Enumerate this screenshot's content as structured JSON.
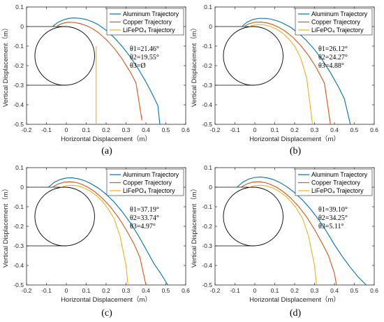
{
  "palette": {
    "aluminum": "#0072BD",
    "copper": "#D95319",
    "lifepo4": "#EDB120",
    "axes": "#262626",
    "shape": "#000000"
  },
  "chart_data": [
    {
      "type": "line",
      "caption": "(a)",
      "xlabel": "Horizontal Displacement（m）",
      "ylabel": "Vertical Displacement（m）",
      "xlim": [
        -0.2,
        0.6
      ],
      "ylim": [
        -0.5,
        0.1
      ],
      "xticks": [
        "-0.2",
        "-0.1",
        "0",
        "0.1",
        "0.2",
        "0.3",
        "0.4",
        "0.5",
        "0.6"
      ],
      "yticks": [
        "0.1",
        "0",
        "-0.1",
        "-0.2",
        "-0.3",
        "-0.4",
        "-0.5"
      ],
      "legend_position": "top-right",
      "grid": false,
      "annotations": [
        "θ1=21.46°",
        "θ2=19.55°",
        "θ3=Ø"
      ],
      "circle": {
        "center": [
          -0.008,
          -0.15
        ],
        "radius": 0.15
      },
      "guide_line": {
        "x": 0,
        "y": -0.3,
        "x_start": -0.2
      },
      "series": [
        {
          "name": "Aluminum Trajectory",
          "x": [
            -0.07,
            -0.04,
            -0.01,
            0.02,
            0.04,
            0.07,
            0.1,
            0.13,
            0.16,
            0.2,
            0.24,
            0.28,
            0.32,
            0.36,
            0.4,
            0.43,
            0.46,
            0.47
          ],
          "y": [
            0.0,
            0.023,
            0.036,
            0.043,
            0.044,
            0.042,
            0.036,
            0.025,
            0.01,
            -0.019,
            -0.056,
            -0.101,
            -0.153,
            -0.214,
            -0.283,
            -0.341,
            -0.404,
            -0.5
          ]
        },
        {
          "name": "Copper Trajectory",
          "x": [
            -0.05,
            -0.03,
            -0.01,
            0.01,
            0.04,
            0.07,
            0.1,
            0.13,
            0.16,
            0.2,
            0.24,
            0.28,
            0.32,
            0.35,
            0.38
          ],
          "y": [
            0.0,
            0.012,
            0.019,
            0.022,
            0.021,
            0.015,
            0.005,
            -0.01,
            -0.03,
            -0.066,
            -0.11,
            -0.165,
            -0.23,
            -0.288,
            -0.48
          ]
        },
        {
          "name": "LiFePO₄ Trajectory",
          "x": [
            0.15,
            0.15
          ],
          "y": [
            -0.1,
            -0.5
          ]
        }
      ]
    },
    {
      "type": "line",
      "caption": "(b)",
      "xlabel": "Horizontal Displacement（m）",
      "ylabel": "Vertical Displacement（m）",
      "xlim": [
        -0.2,
        0.6
      ],
      "ylim": [
        -0.5,
        0.1
      ],
      "xticks": [
        "-0.2",
        "-0.1",
        "0",
        "0.1",
        "0.2",
        "0.3",
        "0.4",
        "0.5",
        "0.6"
      ],
      "yticks": [
        "0.1",
        "0",
        "-0.1",
        "-0.2",
        "-0.3",
        "-0.4",
        "-0.5"
      ],
      "legend_position": "top-right",
      "grid": false,
      "annotations": [
        "θ1=26.12°",
        "θ2=24.27°",
        "θ3=4.88°"
      ],
      "circle": {
        "center": [
          -0.008,
          -0.15
        ],
        "radius": 0.15
      },
      "guide_line": {
        "x": 0,
        "y": -0.3,
        "x_start": -0.2
      },
      "series": [
        {
          "name": "Aluminum Trajectory",
          "x": [
            -0.065,
            -0.04,
            -0.01,
            0.02,
            0.05,
            0.08,
            0.11,
            0.14,
            0.18,
            0.22,
            0.26,
            0.3,
            0.34,
            0.38,
            0.42,
            0.45,
            0.48
          ],
          "y": [
            0.0,
            0.022,
            0.036,
            0.042,
            0.042,
            0.038,
            0.03,
            0.018,
            -0.004,
            -0.034,
            -0.072,
            -0.118,
            -0.172,
            -0.236,
            -0.308,
            -0.37,
            -0.5
          ]
        },
        {
          "name": "Copper Trajectory",
          "x": [
            -0.055,
            -0.03,
            0.0,
            0.03,
            0.06,
            0.09,
            0.12,
            0.15,
            0.19,
            0.23,
            0.27,
            0.31,
            0.35,
            0.38
          ],
          "y": [
            0.0,
            0.014,
            0.022,
            0.023,
            0.019,
            0.01,
            -0.004,
            -0.022,
            -0.054,
            -0.096,
            -0.148,
            -0.212,
            -0.29,
            -0.5
          ]
        },
        {
          "name": "LiFePO₄ Trajectory",
          "x": [
            -0.03,
            -0.01,
            0.02,
            0.05,
            0.08,
            0.11,
            0.14,
            0.17,
            0.2,
            0.23,
            0.26,
            0.29
          ],
          "y": [
            0.0,
            0.006,
            0.01,
            0.008,
            0.0,
            -0.014,
            -0.034,
            -0.062,
            -0.1,
            -0.16,
            -0.26,
            -0.5
          ]
        }
      ]
    },
    {
      "type": "line",
      "caption": "(c)",
      "xlabel": "Horizontal Displacement（m）",
      "ylabel": "Vertical Displacement（m）",
      "xlim": [
        -0.2,
        0.6
      ],
      "ylim": [
        -0.5,
        0.1
      ],
      "xticks": [
        "-0.2",
        "-0.1",
        "0",
        "0.1",
        "0.2",
        "0.3",
        "0.4",
        "0.5",
        "0.6"
      ],
      "yticks": [
        "0.1",
        "0",
        "-0.1",
        "-0.2",
        "-0.3",
        "-0.4",
        "-0.5"
      ],
      "legend_position": "top-right",
      "grid": false,
      "annotations": [
        "θ1=37.19°",
        "θ2=33.74°",
        "θ3=4.97°"
      ],
      "circle": {
        "center": [
          -0.008,
          -0.15
        ],
        "radius": 0.15
      },
      "guide_line": {
        "x": 0,
        "y": -0.3,
        "x_start": -0.2
      },
      "series": [
        {
          "name": "Aluminum Trajectory",
          "x": [
            -0.09,
            -0.06,
            -0.03,
            0.0,
            0.03,
            0.06,
            0.09,
            0.12,
            0.16,
            0.2,
            0.24,
            0.28,
            0.32,
            0.36,
            0.4,
            0.44,
            0.48,
            0.51
          ],
          "y": [
            0.0,
            0.025,
            0.04,
            0.047,
            0.048,
            0.043,
            0.034,
            0.02,
            -0.004,
            -0.036,
            -0.076,
            -0.124,
            -0.18,
            -0.244,
            -0.316,
            -0.39,
            -0.45,
            -0.5
          ]
        },
        {
          "name": "Copper Trajectory",
          "x": [
            -0.07,
            -0.04,
            -0.01,
            0.02,
            0.05,
            0.08,
            0.11,
            0.14,
            0.18,
            0.22,
            0.26,
            0.3,
            0.34,
            0.37,
            0.4
          ],
          "y": [
            0.0,
            0.017,
            0.026,
            0.028,
            0.024,
            0.014,
            -0.001,
            -0.021,
            -0.055,
            -0.099,
            -0.152,
            -0.216,
            -0.29,
            -0.36,
            -0.5
          ]
        },
        {
          "name": "LiFePO₄ Trajectory",
          "x": [
            -0.03,
            0.0,
            0.03,
            0.06,
            0.09,
            0.12,
            0.15,
            0.18,
            0.21,
            0.24,
            0.27,
            0.3,
            0.31
          ],
          "y": [
            0.0,
            0.008,
            0.01,
            0.006,
            -0.004,
            -0.02,
            -0.042,
            -0.072,
            -0.11,
            -0.16,
            -0.25,
            -0.4,
            -0.5
          ]
        }
      ]
    },
    {
      "type": "line",
      "caption": "(d)",
      "xlabel": "Horizontal Displacement（m）",
      "ylabel": "Vertical Displacement（m）",
      "xlim": [
        -0.2,
        0.6
      ],
      "ylim": [
        -0.5,
        0.1
      ],
      "xticks": [
        "-0.2",
        "-0.1",
        "0",
        "0.1",
        "0.2",
        "0.3",
        "0.4",
        "0.5",
        "0.6"
      ],
      "yticks": [
        "0.1",
        "0",
        "-0.1",
        "-0.2",
        "-0.3",
        "-0.4",
        "-0.5"
      ],
      "legend_position": "top-right",
      "grid": false,
      "annotations": [
        "θ1=39.10°",
        "θ2=34.25°",
        "θ3=5.11°"
      ],
      "circle": {
        "center": [
          -0.008,
          -0.15
        ],
        "radius": 0.15
      },
      "guide_line": {
        "x": 0,
        "y": -0.3,
        "x_start": -0.2
      },
      "series": [
        {
          "name": "Aluminum Trajectory",
          "x": [
            -0.09,
            -0.06,
            -0.03,
            0.0,
            0.03,
            0.06,
            0.09,
            0.12,
            0.16,
            0.2,
            0.24,
            0.28,
            0.32,
            0.36,
            0.4,
            0.44,
            0.48,
            0.52,
            0.56
          ],
          "y": [
            0.0,
            0.026,
            0.042,
            0.05,
            0.052,
            0.048,
            0.04,
            0.027,
            0.003,
            -0.028,
            -0.066,
            -0.112,
            -0.165,
            -0.226,
            -0.294,
            -0.355,
            -0.41,
            -0.46,
            -0.5
          ]
        },
        {
          "name": "Copper Trajectory",
          "x": [
            -0.07,
            -0.04,
            -0.01,
            0.02,
            0.05,
            0.08,
            0.11,
            0.14,
            0.18,
            0.22,
            0.26,
            0.3,
            0.34,
            0.37,
            0.4,
            0.41
          ],
          "y": [
            0.0,
            0.017,
            0.026,
            0.028,
            0.024,
            0.014,
            -0.001,
            -0.021,
            -0.055,
            -0.099,
            -0.152,
            -0.216,
            -0.29,
            -0.35,
            -0.44,
            -0.5
          ]
        },
        {
          "name": "LiFePO₄ Trajectory",
          "x": [
            -0.03,
            0.0,
            0.03,
            0.06,
            0.09,
            0.12,
            0.15,
            0.18,
            0.21,
            0.24,
            0.27,
            0.3,
            0.31
          ],
          "y": [
            0.0,
            0.008,
            0.01,
            0.006,
            -0.004,
            -0.02,
            -0.042,
            -0.072,
            -0.11,
            -0.16,
            -0.25,
            -0.4,
            -0.5
          ]
        }
      ]
    }
  ]
}
